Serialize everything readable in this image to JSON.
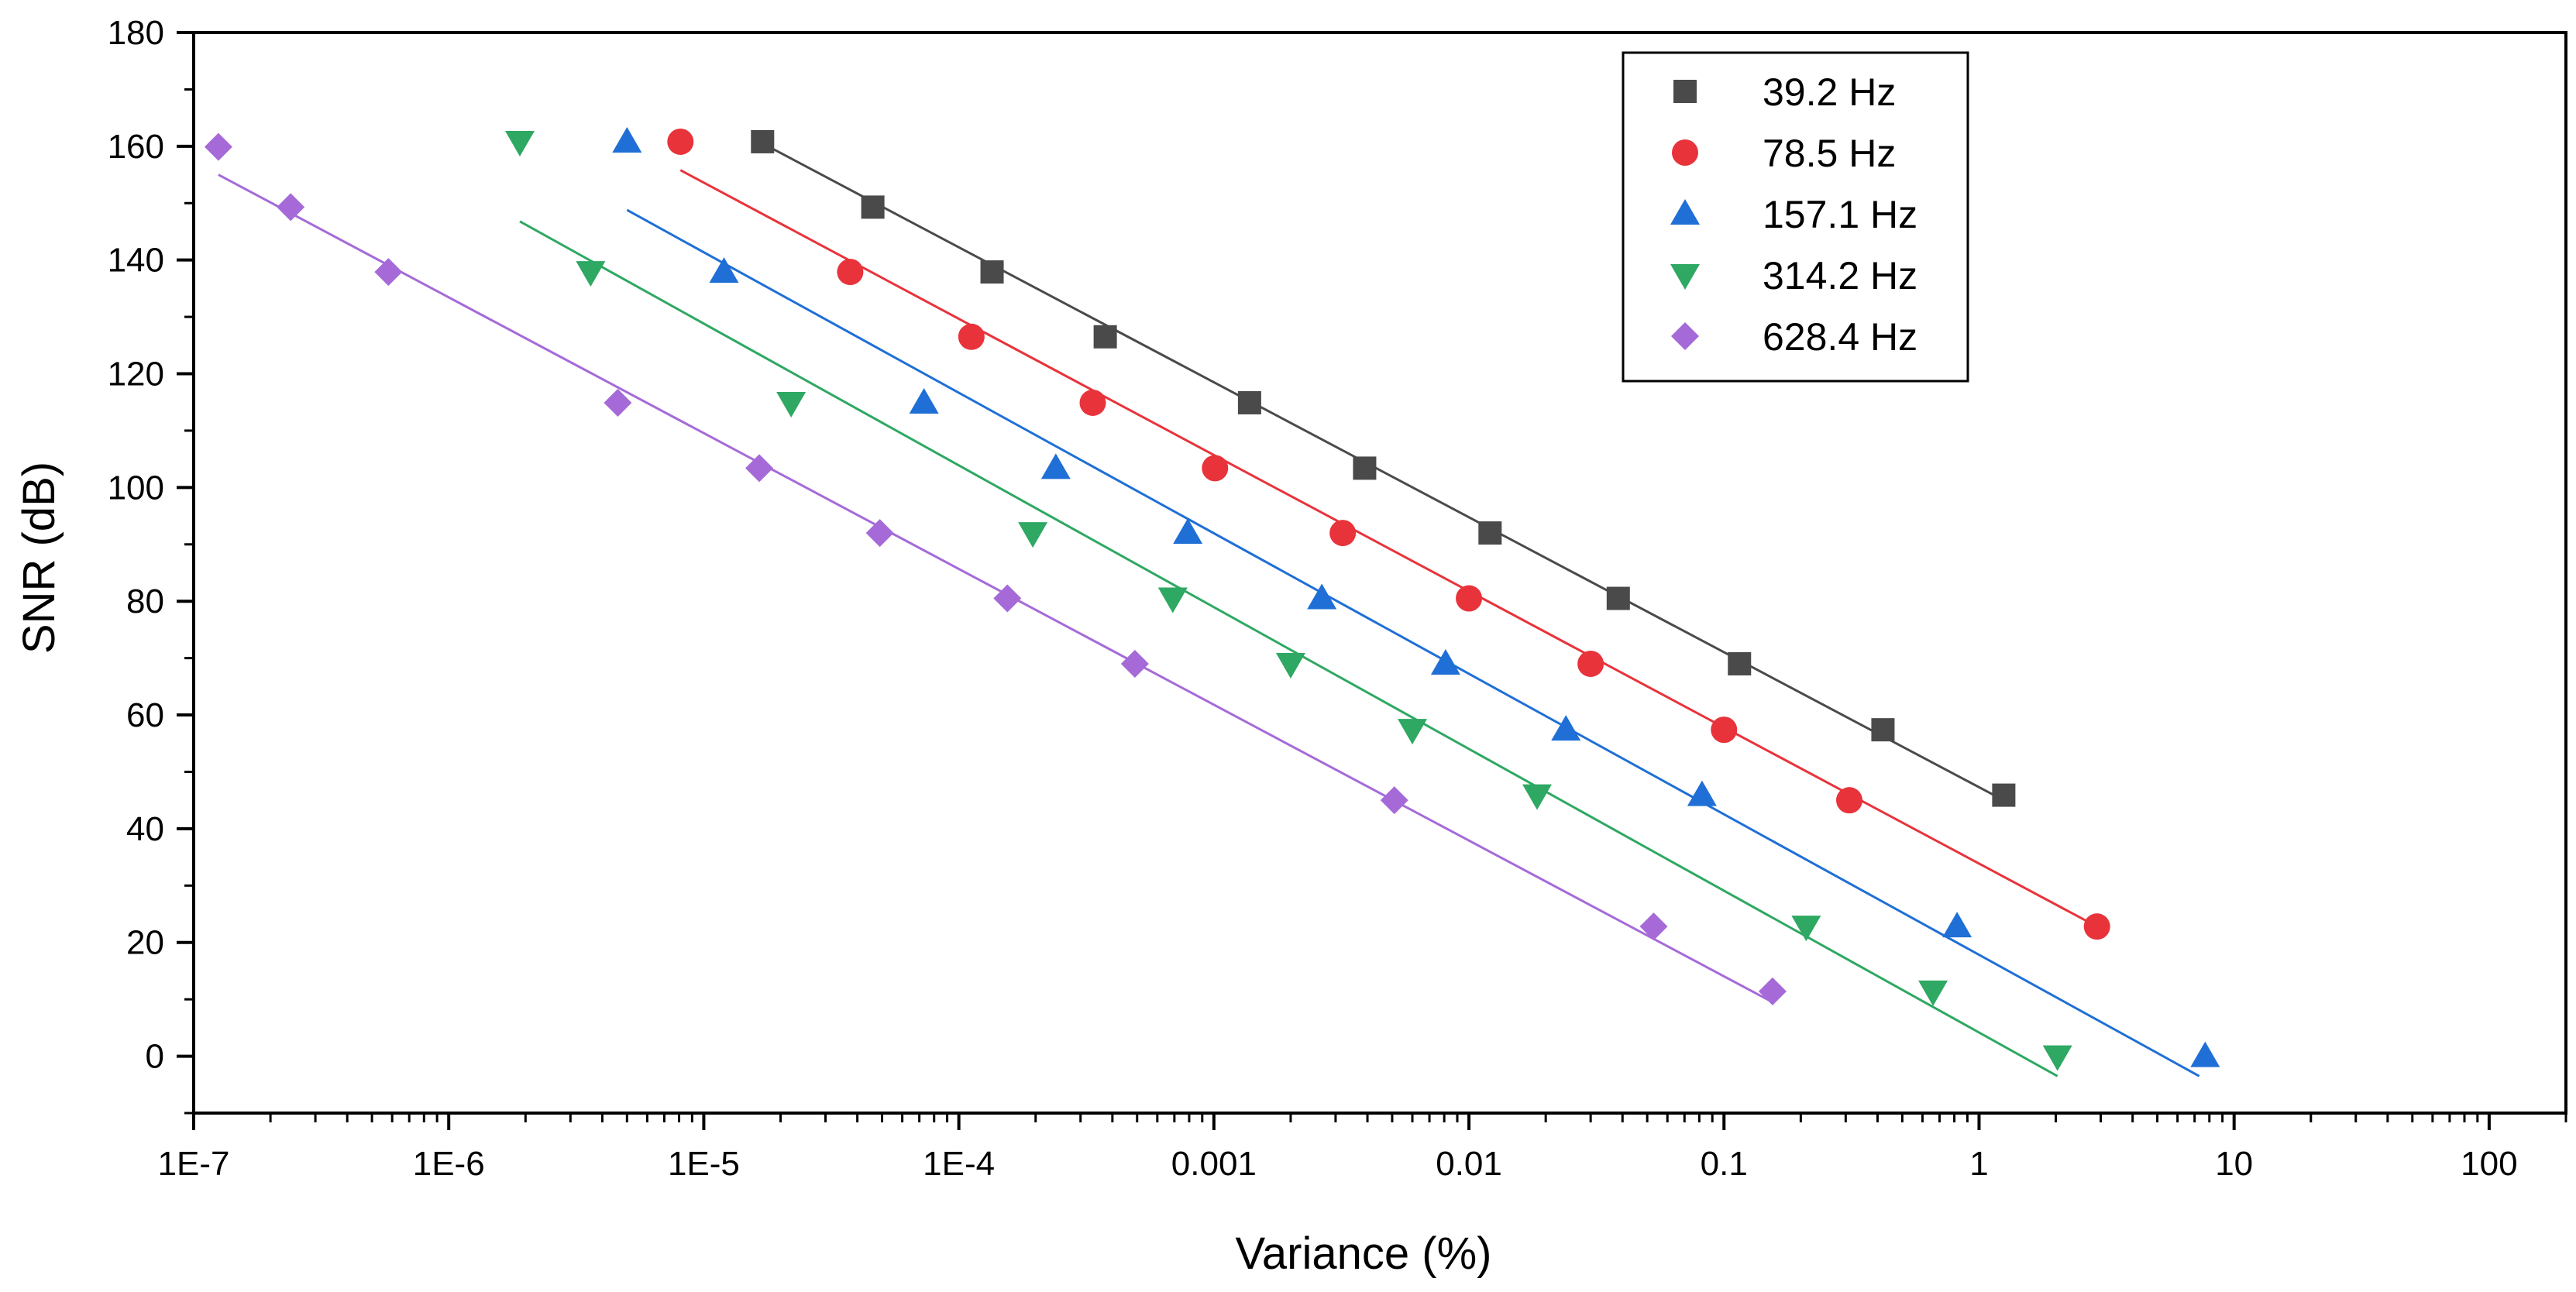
{
  "chart_data": {
    "type": "scatter",
    "title": "",
    "xlabel": "Variance (%)",
    "ylabel": "SNR (dB)",
    "xscale": "log",
    "xlim": [
      1e-07,
      200
    ],
    "ylim": [
      -10,
      180
    ],
    "x_ticks": [
      {
        "value": 1e-07,
        "label": "1E-7"
      },
      {
        "value": 1e-06,
        "label": "1E-6"
      },
      {
        "value": 1e-05,
        "label": "1E-5"
      },
      {
        "value": 0.0001,
        "label": "1E-4"
      },
      {
        "value": 0.001,
        "label": "0.001"
      },
      {
        "value": 0.01,
        "label": "0.01"
      },
      {
        "value": 0.1,
        "label": "0.1"
      },
      {
        "value": 1,
        "label": "1"
      },
      {
        "value": 10,
        "label": "10"
      },
      {
        "value": 100,
        "label": "100"
      }
    ],
    "y_ticks": [
      {
        "value": 0,
        "label": "0"
      },
      {
        "value": 20,
        "label": "20"
      },
      {
        "value": 40,
        "label": "40"
      },
      {
        "value": 60,
        "label": "60"
      },
      {
        "value": 80,
        "label": "80"
      },
      {
        "value": 100,
        "label": "100"
      },
      {
        "value": 120,
        "label": "120"
      },
      {
        "value": 140,
        "label": "140"
      },
      {
        "value": 160,
        "label": "160"
      },
      {
        "value": 180,
        "label": "180"
      }
    ],
    "grid": false,
    "legend_position": "top-right",
    "series": [
      {
        "name": "39.2 Hz",
        "marker": "square",
        "color": "#4a4a4a",
        "points": [
          [
            1.7e-05,
            160.8
          ],
          [
            4.6e-05,
            149.3
          ],
          [
            0.000135,
            137.9
          ],
          [
            0.000375,
            126.5
          ],
          [
            0.00138,
            114.9
          ],
          [
            0.0039,
            103.4
          ],
          [
            0.0121,
            92.0
          ],
          [
            0.0385,
            80.5
          ],
          [
            0.115,
            69.0
          ],
          [
            0.42,
            57.4
          ],
          [
            1.25,
            45.9
          ]
        ],
        "fit": [
          [
            1.7e-05,
            160.5
          ],
          [
            1.25,
            45.0
          ]
        ]
      },
      {
        "name": "78.5 Hz",
        "marker": "circle",
        "color": "#e8333b",
        "points": [
          [
            8.1e-06,
            160.8
          ],
          [
            3.75e-05,
            137.9
          ],
          [
            0.000112,
            126.5
          ],
          [
            0.000335,
            114.9
          ],
          [
            0.00101,
            103.4
          ],
          [
            0.0032,
            92.0
          ],
          [
            0.01,
            80.5
          ],
          [
            0.03,
            69.0
          ],
          [
            0.1,
            57.4
          ],
          [
            0.31,
            45.0
          ],
          [
            2.9,
            22.8
          ]
        ],
        "fit": [
          [
            8.1e-06,
            155.8
          ],
          [
            2.9,
            22.8
          ]
        ]
      },
      {
        "name": "157.1 Hz",
        "marker": "triangle-up",
        "color": "#1f6fd6",
        "points": [
          [
            5e-06,
            160.8
          ],
          [
            1.2e-05,
            137.9
          ],
          [
            7.3e-05,
            114.9
          ],
          [
            0.00024,
            103.4
          ],
          [
            0.00079,
            92.0
          ],
          [
            0.00265,
            80.5
          ],
          [
            0.0081,
            69.0
          ],
          [
            0.024,
            57.4
          ],
          [
            0.082,
            45.9
          ],
          [
            0.82,
            22.8
          ],
          [
            7.7,
            0
          ]
        ],
        "fit": [
          [
            5e-06,
            148.8
          ],
          [
            7.3,
            -3.5
          ]
        ]
      },
      {
        "name": "314.2 Hz",
        "marker": "triangle-down",
        "color": "#2ea862",
        "points": [
          [
            1.9e-06,
            160.8
          ],
          [
            3.6e-06,
            137.9
          ],
          [
            2.2e-05,
            114.9
          ],
          [
            0.000195,
            92.0
          ],
          [
            0.00069,
            80.5
          ],
          [
            0.002,
            69.0
          ],
          [
            0.006,
            57.4
          ],
          [
            0.0185,
            45.9
          ],
          [
            0.21,
            22.8
          ],
          [
            0.66,
            11.4
          ],
          [
            2.03,
            0
          ]
        ],
        "fit": [
          [
            1.9e-06,
            146.8
          ],
          [
            2.03,
            -3.5
          ]
        ]
      },
      {
        "name": "628.4 Hz",
        "marker": "diamond",
        "color": "#a56ad8",
        "points": [
          [
            1.25e-07,
            159.9
          ],
          [
            2.4e-07,
            149.3
          ],
          [
            5.8e-07,
            137.9
          ],
          [
            4.6e-06,
            114.9
          ],
          [
            1.65e-05,
            103.4
          ],
          [
            4.9e-05,
            92.0
          ],
          [
            0.000155,
            80.5
          ],
          [
            0.00049,
            69.0
          ],
          [
            0.0051,
            45.0
          ],
          [
            0.053,
            22.8
          ],
          [
            0.155,
            11.4
          ]
        ],
        "fit": [
          [
            1.25e-07,
            155.0
          ],
          [
            0.155,
            9.5
          ]
        ]
      }
    ]
  }
}
